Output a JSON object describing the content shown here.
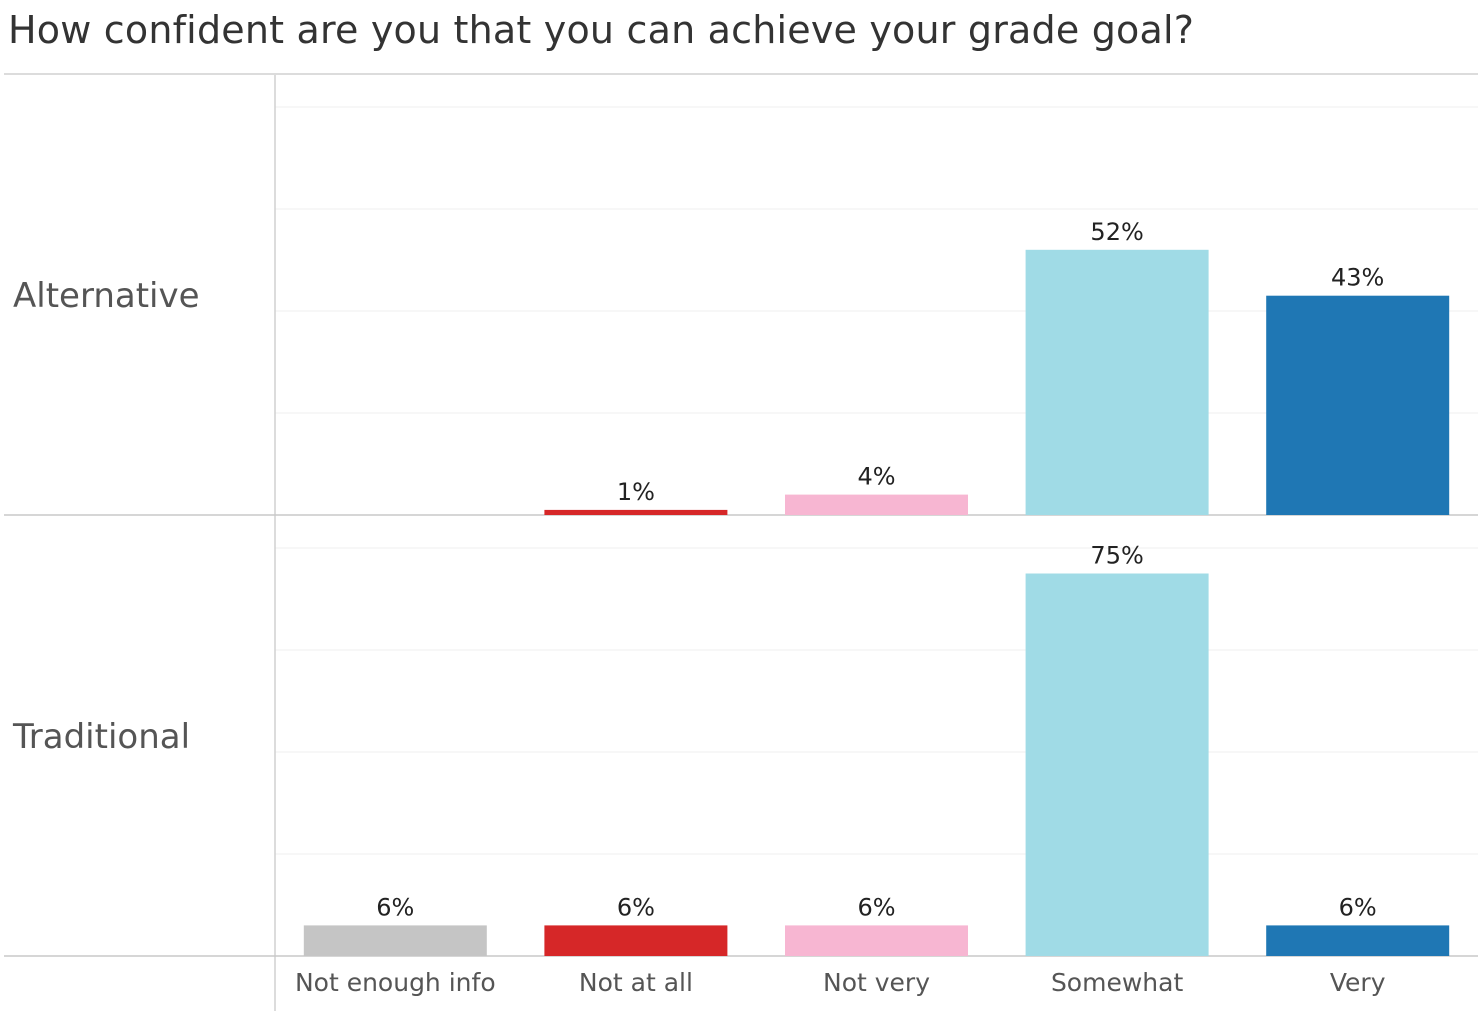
{
  "chart_data": {
    "type": "bar",
    "title": "How confident are you that you can achieve your grade goal?",
    "categories": [
      "Not enough info",
      "Not at all",
      "Not very",
      "Somewhat",
      "Very"
    ],
    "category_colors": [
      "#c5c5c5",
      "#d62728",
      "#f7b6d2",
      "#a0dbe6",
      "#1f77b4"
    ],
    "ylim": [
      0,
      80
    ],
    "grid": true,
    "legend": "none",
    "panels": [
      {
        "name": "Alternative",
        "values": [
          null,
          1,
          4,
          52,
          43
        ],
        "labels": [
          "",
          "1%",
          "4%",
          "52%",
          "43%"
        ]
      },
      {
        "name": "Traditional",
        "values": [
          6,
          6,
          6,
          75,
          6
        ],
        "labels": [
          "6%",
          "6%",
          "6%",
          "75%",
          "6%"
        ]
      }
    ]
  }
}
